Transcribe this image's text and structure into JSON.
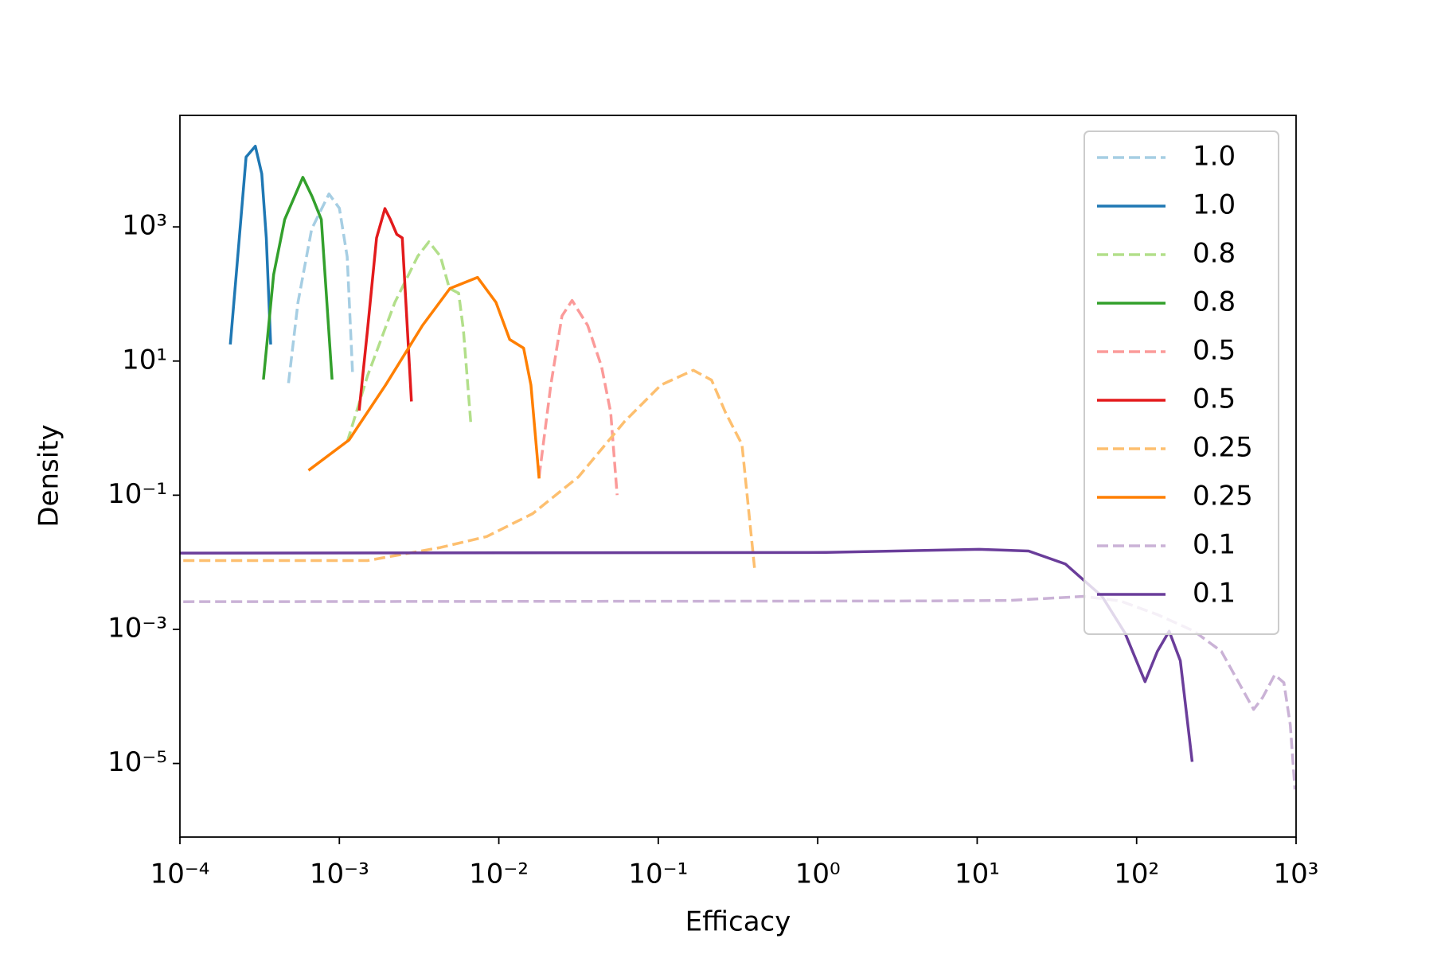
{
  "chart_data": {
    "type": "line",
    "xlabel": "Efficacy",
    "ylabel": "Density",
    "xscale": "log",
    "yscale": "log",
    "xlim": [
      0.0001,
      1000
    ],
    "ylim": [
      8e-07,
      46000
    ],
    "xticks": [
      {
        "value": 0.0001,
        "label": "10⁻⁴"
      },
      {
        "value": 0.001,
        "label": "10⁻³"
      },
      {
        "value": 0.01,
        "label": "10⁻²"
      },
      {
        "value": 0.1,
        "label": "10⁻¹"
      },
      {
        "value": 1,
        "label": "10⁰"
      },
      {
        "value": 10,
        "label": "10¹"
      },
      {
        "value": 100,
        "label": "10²"
      },
      {
        "value": 1000,
        "label": "10³"
      }
    ],
    "yticks": [
      {
        "value": 1e-05,
        "label": "10⁻⁵"
      },
      {
        "value": 0.001,
        "label": "10⁻³"
      },
      {
        "value": 0.1,
        "label": "10⁻¹"
      },
      {
        "value": 10,
        "label": "10¹"
      },
      {
        "value": 1000,
        "label": "10³"
      }
    ],
    "legend": "upper right",
    "series": [
      {
        "name": "1.0",
        "color": "#a6cee3",
        "linestyle": "dashed",
        "x": [
          0.00048,
          0.00055,
          0.00067,
          0.00086,
          0.001,
          0.00112,
          0.00121
        ],
        "values": [
          4.7,
          75,
          930,
          3100,
          1900,
          360,
          6.5
        ]
      },
      {
        "name": "1.0",
        "color": "#1f78b4",
        "linestyle": "solid",
        "x": [
          0.000207,
          0.000228,
          0.00026,
          0.000297,
          0.000326,
          0.000348,
          0.000371
        ],
        "values": [
          17.7,
          266,
          11000,
          16000,
          6200,
          685,
          17.7
        ]
      },
      {
        "name": "0.8",
        "color": "#b2df8a",
        "linestyle": "dashed",
        "x": [
          0.00112,
          0.0015,
          0.00223,
          0.0031,
          0.00364,
          0.0043,
          0.0049,
          0.0056,
          0.006,
          0.0067
        ],
        "values": [
          0.62,
          6.0,
          75,
          365,
          600,
          365,
          121,
          103,
          29,
          1.06
        ]
      },
      {
        "name": "0.8",
        "color": "#33a02c",
        "linestyle": "solid",
        "x": [
          0.000334,
          0.000387,
          0.000454,
          0.00059,
          0.000675,
          0.00077,
          0.0009
        ],
        "values": [
          5.3,
          194,
          1290,
          5500,
          2830,
          1290,
          5.3
        ]
      },
      {
        "name": "0.5",
        "color": "#fb9a99",
        "linestyle": "dashed",
        "x": [
          0.0179,
          0.0212,
          0.0249,
          0.0288,
          0.0361,
          0.0441,
          0.0503,
          0.0552
        ],
        "values": [
          0.188,
          4.4,
          47,
          80,
          34,
          8.3,
          1.71,
          0.1
        ]
      },
      {
        "name": "0.5",
        "color": "#e31a1c",
        "linestyle": "solid",
        "x": [
          0.00133,
          0.0015,
          0.00171,
          0.00193,
          0.00209,
          0.00229,
          0.00248,
          0.00283
        ],
        "values": [
          1.82,
          29,
          685,
          1880,
          1290,
          775,
          685,
          2.5
        ]
      },
      {
        "name": "0.25",
        "color": "#fdbf6f",
        "linestyle": "dashed",
        "x": [
          0.000105,
          0.0015,
          0.0043,
          0.0084,
          0.0163,
          0.0316,
          0.0614,
          0.104,
          0.166,
          0.216,
          0.264,
          0.335,
          0.403
        ],
        "values": [
          0.0106,
          0.0106,
          0.0166,
          0.0242,
          0.0532,
          0.188,
          1.25,
          4.4,
          7.3,
          5.2,
          1.71,
          0.57,
          0.0075
        ]
      },
      {
        "name": "0.25",
        "color": "#ff7f00",
        "linestyle": "solid",
        "x": [
          0.00064,
          0.00115,
          0.00195,
          0.00332,
          0.00494,
          0.00735,
          0.0096,
          0.0117,
          0.0143,
          0.0159,
          0.0179
        ],
        "values": [
          0.234,
          0.664,
          4.4,
          34,
          121,
          177,
          75,
          21,
          15.6,
          4.4,
          0.177
        ]
      },
      {
        "name": "0.1",
        "color": "#cab2d6",
        "linestyle": "dashed",
        "x": [
          0.000105,
          4.28,
          16.1,
          46.6,
          79,
          135,
          229,
          340,
          542,
          618,
          735,
          839,
          920,
          984
        ],
        "values": [
          0.00258,
          0.00265,
          0.0027,
          0.0031,
          0.00265,
          0.00166,
          0.00094,
          0.00047,
          6.4e-05,
          9.7e-05,
          0.00021,
          0.00016,
          3.8e-05,
          4.1e-06
        ]
      },
      {
        "name": "0.1",
        "color": "#6a3d9a",
        "linestyle": "solid",
        "x": [
          0.0001,
          1.13,
          10.3,
          21,
          35.8,
          60.7,
          84.5,
          113,
          135,
          160,
          188,
          223
        ],
        "values": [
          0.0137,
          0.014,
          0.0156,
          0.0147,
          0.0094,
          0.0031,
          0.00088,
          0.000166,
          0.00047,
          0.00094,
          0.00034,
          1.06e-05
        ]
      }
    ]
  }
}
